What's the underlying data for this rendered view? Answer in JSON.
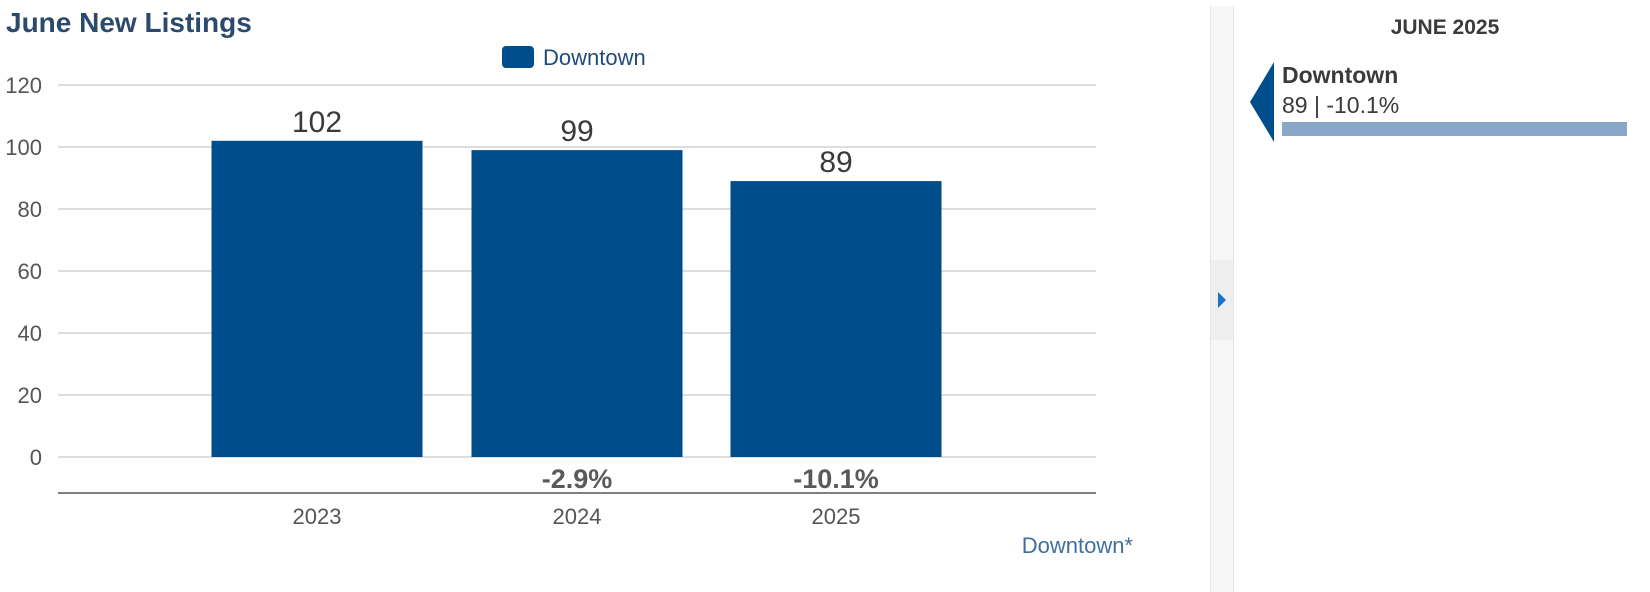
{
  "chart_data": {
    "type": "bar",
    "title": "June New Listings",
    "categories": [
      "2023",
      "2024",
      "2025"
    ],
    "series": [
      {
        "name": "Downtown",
        "values": [
          102,
          99,
          89
        ],
        "value_labels": [
          "102",
          "99",
          "89"
        ],
        "change_labels": [
          "",
          "-2.9%",
          "-10.1%"
        ]
      }
    ],
    "xlabel": "",
    "ylabel": "",
    "ylim": [
      0,
      120
    ],
    "yticks": [
      0,
      20,
      40,
      60,
      80,
      100,
      120
    ],
    "grid": true,
    "legend": "top-center"
  },
  "colors": {
    "series_color": "#004d8c",
    "title_color": "#2b4a6e",
    "panel_bar_color": "#89a8c9",
    "accent_arrow": "#1a73c8"
  },
  "footer": {
    "link_text": "Downtown*"
  },
  "side_panel": {
    "period": "JUNE 2025",
    "card": {
      "name": "Downtown",
      "value_text": "89 | -10.1%",
      "bar_fill_fraction": 1.0
    },
    "collapse_icon": "triangle-right-icon"
  }
}
